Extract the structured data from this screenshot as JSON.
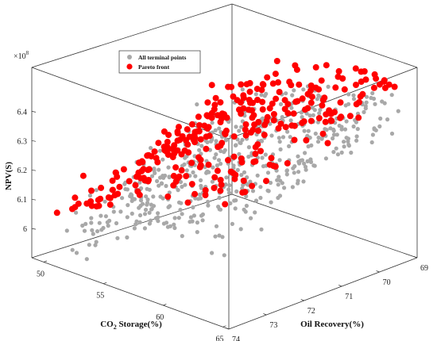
{
  "chart_data": {
    "type": "scatter",
    "projection": "3d",
    "title": "",
    "xlabel": "CO2 Storage(%)",
    "xlabel_main": "CO",
    "xlabel_sub": "2",
    "xlabel_tail": " Storage(%)",
    "ylabel": "Oil Recovery(%)",
    "zlabel": "NPV($)",
    "zlabel_display": "NPV(S)",
    "z_exponent_label": "×10",
    "z_exponent": "8",
    "xlim": [
      49,
      65.5
    ],
    "ylim": [
      69,
      74
    ],
    "zlim": [
      5.9,
      6.55
    ],
    "x_ticks": [
      "50",
      "55",
      "60",
      "65"
    ],
    "y_ticks": [
      "69",
      "70",
      "71",
      "72",
      "73",
      "74"
    ],
    "z_ticks": [
      "6",
      "6.1",
      "6.2",
      "6.3",
      "6.4"
    ],
    "grid": false,
    "box": true,
    "legend_position": "top-left",
    "series": [
      {
        "name": "All terminal points",
        "color": "#a8a8a8",
        "marker": "circle"
      },
      {
        "name": "Pareto front",
        "color": "#ff0000",
        "marker": "circle"
      }
    ],
    "point_count_note": ""
  }
}
